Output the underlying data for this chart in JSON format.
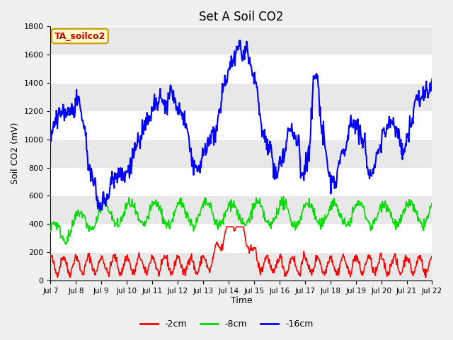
{
  "title": "Set A Soil CO2",
  "xlabel": "Time",
  "ylabel": "Soil CO2 (mV)",
  "ylim": [
    0,
    1800
  ],
  "xlim": [
    0,
    360
  ],
  "fig_bg_color": "#f0f0f0",
  "plot_bg_color": "#ffffff",
  "stripe_color": "#e8e8e8",
  "line_colors": {
    "2cm": "#ff0000",
    "8cm": "#00dd00",
    "16cm": "#0000ff"
  },
  "legend_labels": [
    "-2cm",
    "-8cm",
    "-16cm"
  ],
  "annotation_text": "TA_soilco2",
  "annotation_bg": "#ffffcc",
  "annotation_border": "#cc9900",
  "x_tick_labels": [
    "Jul 7",
    "Jul 8",
    "Jul 9",
    "Jul 10",
    "Jul 11",
    "Jul 12",
    "Jul 13",
    "Jul 14",
    "Jul 15",
    "Jul 16",
    "Jul 17",
    "Jul 18",
    "Jul 19",
    "Jul 20",
    "Jul 21",
    "Jul 22"
  ],
  "x_tick_positions": [
    0,
    24,
    48,
    72,
    96,
    120,
    144,
    168,
    192,
    216,
    240,
    264,
    288,
    312,
    336,
    360
  ],
  "yticks": [
    0,
    200,
    400,
    600,
    800,
    1000,
    1200,
    1400,
    1600,
    1800
  ]
}
